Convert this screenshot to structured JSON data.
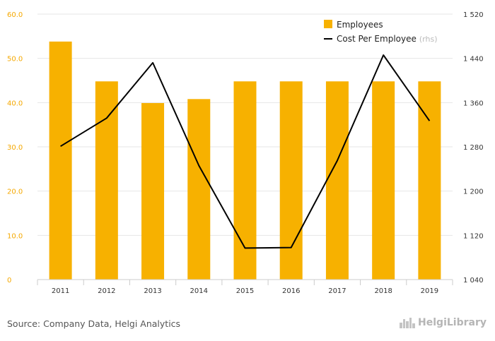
{
  "chart_data": {
    "type": "bar+line",
    "categories": [
      "2011",
      "2012",
      "2013",
      "2014",
      "2015",
      "2016",
      "2017",
      "2018",
      "2019"
    ],
    "series": [
      {
        "name": "Employees",
        "type": "bar",
        "axis": "left",
        "color": "#f7b100",
        "values": [
          53.8,
          44.8,
          39.9,
          40.8,
          44.8,
          44.8,
          44.8,
          44.8,
          44.8
        ]
      },
      {
        "name": "Cost Per Employee",
        "type": "line",
        "axis": "right",
        "color": "#000000",
        "values": [
          1281,
          1332,
          1432,
          1246,
          1097,
          1098,
          1255,
          1446,
          1327
        ]
      }
    ],
    "left_axis": {
      "ylim": [
        0,
        60
      ],
      "ticks": [
        "0",
        "10.0",
        "20.0",
        "30.0",
        "40.0",
        "50.0",
        "60.0"
      ]
    },
    "right_axis": {
      "ylim": [
        1040,
        1520
      ],
      "ticks": [
        "1 040",
        "1 120",
        "1 200",
        "1 280",
        "1 360",
        "1 440",
        "1 520"
      ]
    },
    "legend": {
      "placement": "top-right",
      "bar_label": "Employees",
      "line_label": "Cost Per Employee",
      "line_suffix": "(rhs)"
    },
    "grid": true
  },
  "footer": {
    "source": "Source: Company Data, Helgi Analytics",
    "logo_text": "HelgiLibrary",
    "logo_icon": "city-skyline-icon"
  }
}
